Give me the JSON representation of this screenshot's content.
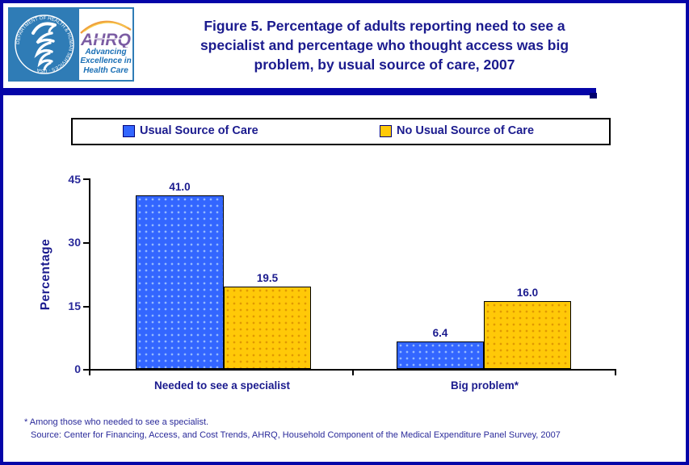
{
  "colors": {
    "navy_text": "#1b1b8e",
    "border_blue": "#0505a8",
    "series_blue": "#3366ff",
    "series_yellow": "#ffc908"
  },
  "header": {
    "title": "Figure 5. Percentage of adults reporting need to see a specialist and percentage who thought access was big problem, by usual source of care, 2007",
    "title_lines": [
      "Figure 5. Percentage of adults reporting need to see a",
      "specialist and percentage who thought access was big",
      "problem, by usual source of care, 2007"
    ],
    "logo": {
      "org_acronym": "AHRQ",
      "tagline_lines": [
        "Advancing",
        "Excellence in",
        "Health Care"
      ],
      "seal_text": "DEPARTMENT OF HEALTH & HUMAN SERVICES · USA"
    }
  },
  "chart_data": {
    "type": "bar",
    "title": "Percentage of adults reporting need to see a specialist and percentage who thought access was big problem, by usual source of care, 2007",
    "categories": [
      "Needed to see a specialist",
      "Big problem*"
    ],
    "series": [
      {
        "name": "Usual Source of Care",
        "color": "#3366ff",
        "values": [
          41.0,
          6.4
        ],
        "labels": [
          "41.0",
          "6.4"
        ]
      },
      {
        "name": "No Usual Source of Care",
        "color": "#ffc908",
        "values": [
          19.5,
          16.0
        ],
        "labels": [
          "19.5",
          "16.0"
        ]
      }
    ],
    "xlabel": "",
    "ylabel": "Percentage",
    "ylim": [
      0,
      45
    ],
    "yticks": [
      0,
      15,
      30,
      45
    ],
    "grid": false,
    "legend_position": "top"
  },
  "footnotes": [
    "* Among those who needed to see a specialist.",
    "Source: Center for Financing, Access, and Cost Trends, AHRQ, Household Component of the Medical Expenditure Panel Survey, 2007"
  ]
}
